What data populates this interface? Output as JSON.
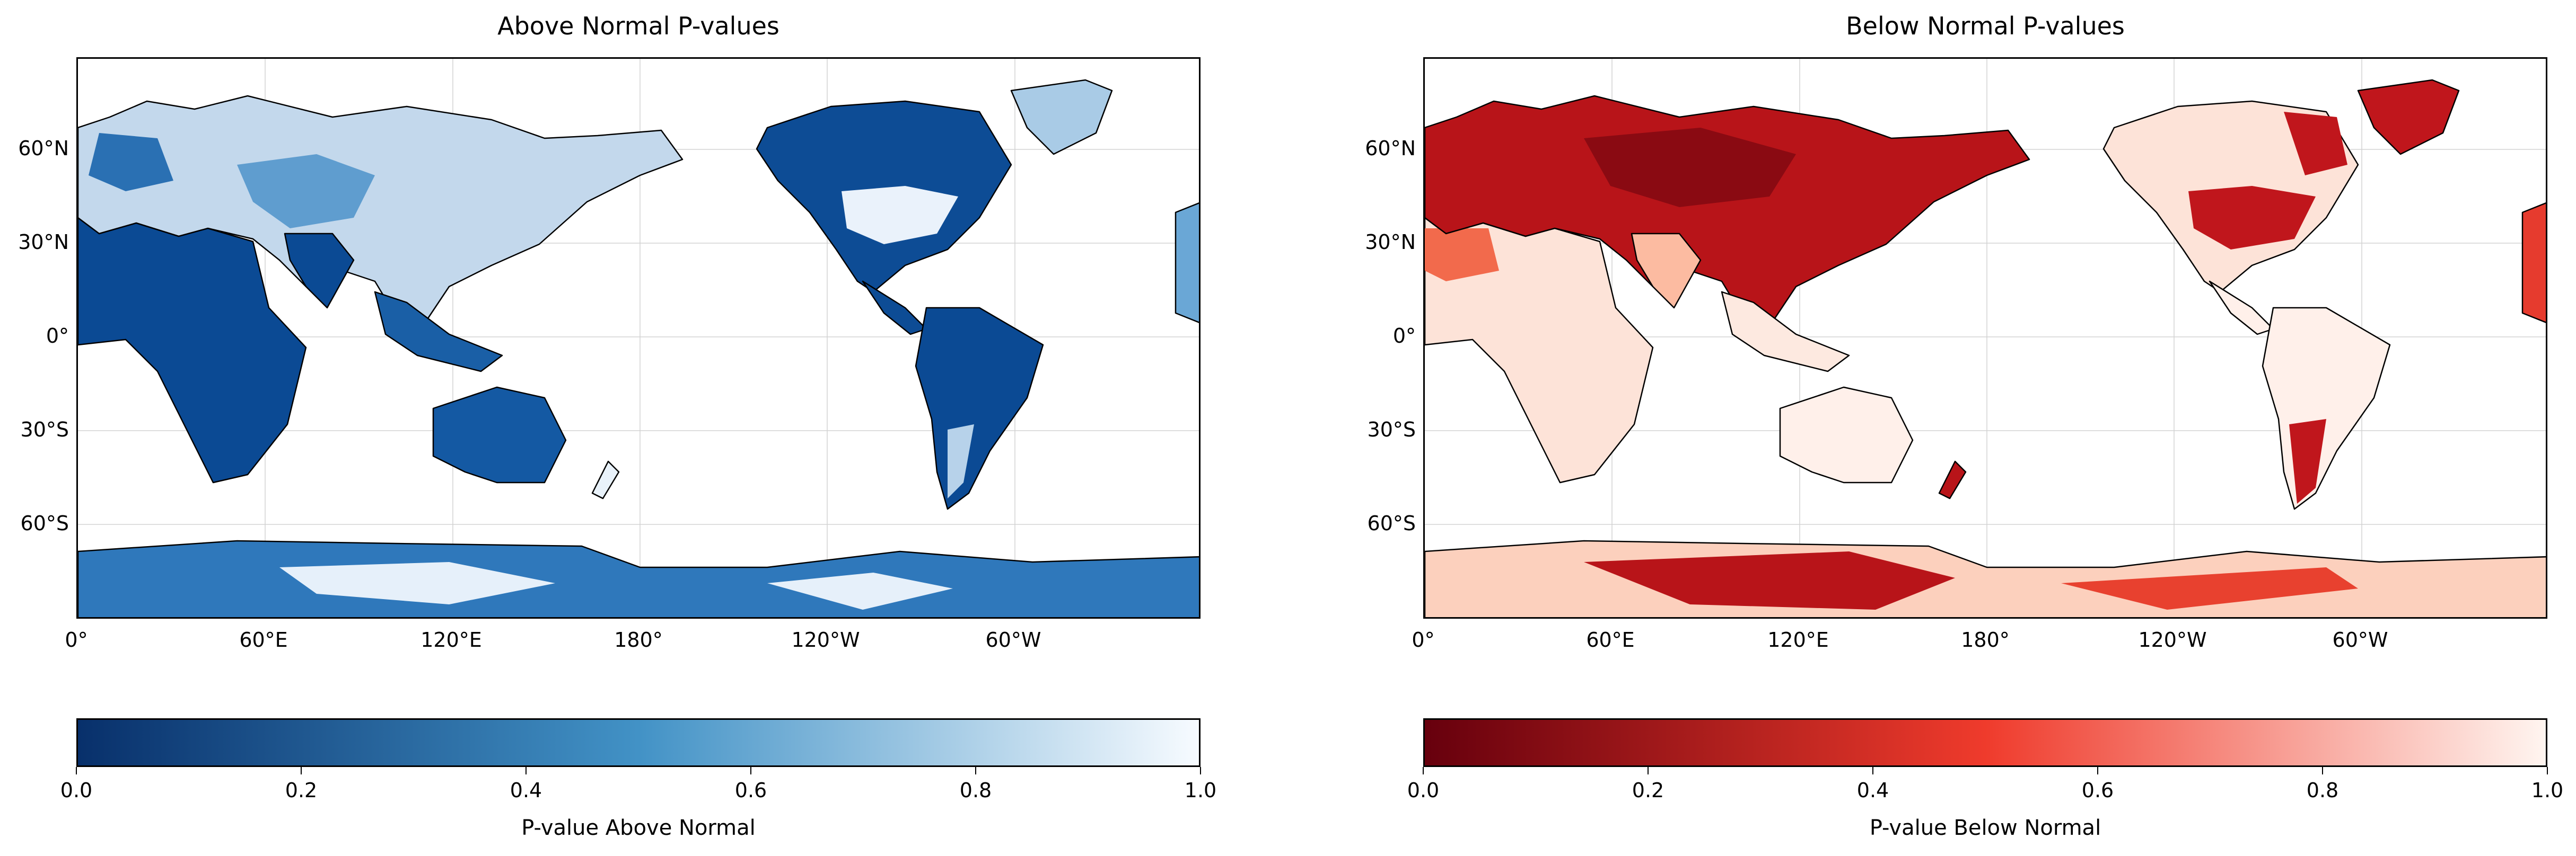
{
  "panels": [
    {
      "id": "above",
      "title": "Above Normal P-values",
      "colorbar_label": "P-value Above Normal",
      "colormap": "Blues_r",
      "colors": {
        "low": "#08306b",
        "mid": "#4292c6",
        "high": "#f7fbff"
      }
    },
    {
      "id": "below",
      "title": "Below Normal P-values",
      "colorbar_label": "P-value Below Normal",
      "colormap": "Reds_r",
      "colors": {
        "low": "#67000d",
        "mid": "#ef3b2c",
        "high": "#fff5f0"
      }
    }
  ],
  "lat_ticks": [
    "60°N",
    "30°N",
    "0°",
    "30°S",
    "60°S"
  ],
  "lon_ticks": [
    "0°",
    "60°E",
    "120°E",
    "180°",
    "120°W",
    "60°W"
  ],
  "colorbar_ticks": [
    "0.0",
    "0.2",
    "0.4",
    "0.6",
    "0.8",
    "1.0"
  ],
  "colorbar_range": [
    0.0,
    1.0
  ]
}
